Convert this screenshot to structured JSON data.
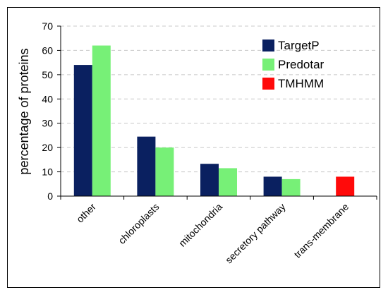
{
  "chart_data": {
    "type": "bar",
    "categories": [
      "other",
      "chloroplasts",
      "mitochondria",
      "secretory pathway",
      "trans-membrane"
    ],
    "series": [
      {
        "name": "TargetP",
        "color": "#0a2060",
        "values": [
          54,
          24.5,
          13.3,
          8,
          null
        ]
      },
      {
        "name": "Predotar",
        "color": "#77f077",
        "values": [
          62,
          20,
          11.5,
          7,
          null
        ]
      },
      {
        "name": "TMHMM",
        "color": "#ff0a0a",
        "values": [
          null,
          null,
          null,
          null,
          8
        ]
      }
    ],
    "title": "",
    "xlabel": "",
    "ylabel": "percentage of proteins",
    "ylim": [
      0,
      70
    ],
    "yticks": [
      0,
      10,
      20,
      30,
      40,
      50,
      60,
      70
    ],
    "grid": "horizontal dashed",
    "legend": "top-right"
  }
}
